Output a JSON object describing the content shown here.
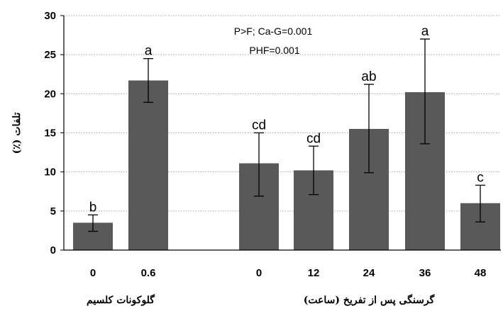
{
  "chart_data": {
    "type": "bar",
    "ylabel": "تلفات (٪)",
    "ylim": [
      0,
      30
    ],
    "yticks": [
      0,
      5,
      10,
      15,
      20,
      25,
      30
    ],
    "grid": "horizontal dotted",
    "bar_color": "#595959",
    "annotations": [
      "P>F; Ca-G=0.001",
      "PHF=0.001"
    ],
    "groups": [
      {
        "label": "گلوکونات کلسیم",
        "categories": [
          "0",
          "0.6"
        ]
      },
      {
        "label": "گرسنگی پس از تفریخ (ساعت)",
        "categories": [
          "0",
          "12",
          "24",
          "36",
          "48"
        ]
      }
    ],
    "bars": [
      {
        "category": "0",
        "group": 0,
        "value": 3.5,
        "error_low": 2.4,
        "error_high": 4.5,
        "letter": "b"
      },
      {
        "category": "0.6",
        "group": 0,
        "value": 21.7,
        "error_low": 18.9,
        "error_high": 24.5,
        "letter": "a"
      },
      {
        "category": "0",
        "group": 1,
        "value": 11.1,
        "error_low": 6.9,
        "error_high": 15.0,
        "letter": "cd"
      },
      {
        "category": "12",
        "group": 1,
        "value": 10.2,
        "error_low": 7.1,
        "error_high": 13.3,
        "letter": "cd"
      },
      {
        "category": "24",
        "group": 1,
        "value": 15.5,
        "error_low": 9.9,
        "error_high": 21.2,
        "letter": "ab"
      },
      {
        "category": "36",
        "group": 1,
        "value": 20.2,
        "error_low": 13.6,
        "error_high": 27.0,
        "letter": "a"
      },
      {
        "category": "48",
        "group": 1,
        "value": 6.0,
        "error_low": 3.6,
        "error_high": 8.3,
        "letter": "c"
      }
    ]
  }
}
